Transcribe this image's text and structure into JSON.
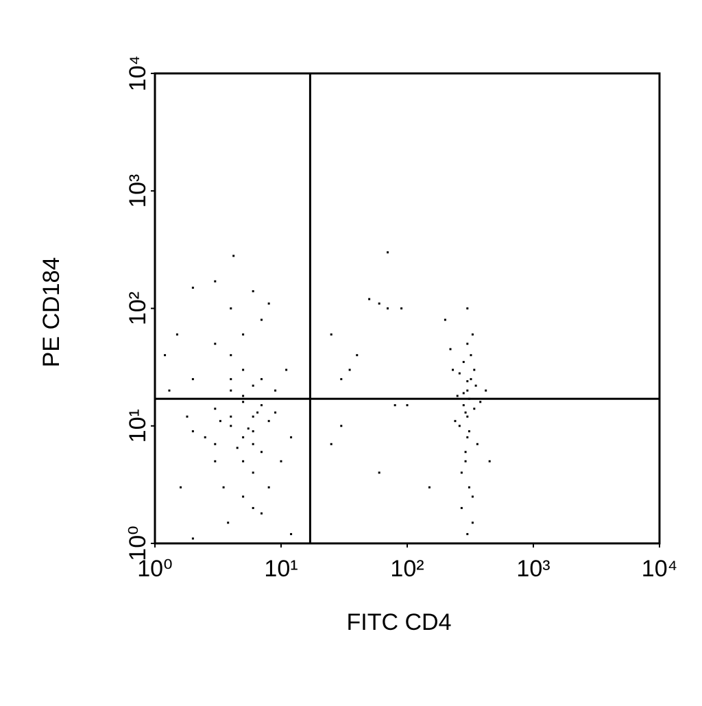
{
  "chart_data": {
    "type": "scatter",
    "x_label": "FITC CD4",
    "y_label": "PE CD184",
    "log_x": true,
    "log_y": true,
    "color": "#000000",
    "xlim": [
      1,
      10000
    ],
    "ylim": [
      1,
      10000
    ],
    "xticks": [
      {
        "value": 1,
        "label": "10⁰"
      },
      {
        "value": 10,
        "label": "10¹"
      },
      {
        "value": 100,
        "label": "10²"
      },
      {
        "value": 1000,
        "label": "10³"
      },
      {
        "value": 10000,
        "label": "10⁴"
      }
    ],
    "yticks": [
      {
        "value": 1,
        "label": "10⁰"
      },
      {
        "value": 10,
        "label": "10¹"
      },
      {
        "value": 100,
        "label": "10²"
      },
      {
        "value": 1000,
        "label": "10³"
      },
      {
        "value": 10000,
        "label": "10⁴"
      }
    ],
    "quadrant_x": 17,
    "quadrant_y": 17,
    "series": [
      {
        "x": [
          5,
          4,
          6,
          3,
          7,
          5,
          4,
          6,
          8,
          3,
          2,
          5,
          4,
          7,
          6,
          3,
          9,
          5,
          4,
          6,
          2,
          3,
          5,
          7,
          4,
          2,
          3,
          6,
          8,
          1.5,
          1.2,
          1.3,
          1.8,
          2.5,
          3.5,
          5,
          6,
          8,
          10,
          12,
          9,
          11,
          7,
          4,
          5,
          6,
          3.3,
          4.5,
          5.5,
          6.5,
          3.8,
          7,
          12,
          2,
          4.2,
          1.6,
          300,
          280,
          320,
          260,
          340,
          300,
          290,
          310,
          270,
          330,
          300,
          250,
          350,
          280,
          320,
          300,
          260,
          340,
          290,
          310,
          270,
          330,
          300,
          360,
          240,
          380,
          420,
          450,
          230,
          300,
          330,
          220,
          310,
          290,
          300,
          280,
          30,
          50,
          60,
          70,
          90,
          40,
          25,
          100,
          30,
          80,
          200,
          70,
          60,
          150,
          25,
          35
        ],
        "values": [
          8,
          10,
          12,
          7,
          15,
          5,
          20,
          9,
          11,
          14,
          9,
          30,
          40,
          6,
          4,
          5,
          13,
          16,
          12,
          7,
          25,
          50,
          60,
          80,
          100,
          150,
          170,
          140,
          110,
          60,
          40,
          20,
          12,
          8,
          3,
          2.5,
          2,
          3,
          5,
          8,
          20,
          30,
          25,
          25,
          18,
          22,
          11,
          6.5,
          9.5,
          13,
          1.5,
          1.8,
          1.2,
          1.1,
          280,
          3,
          20,
          15,
          25,
          10,
          30,
          8,
          5,
          3,
          2,
          1.5,
          12,
          18,
          22,
          35,
          40,
          50,
          28,
          14,
          6,
          9,
          4,
          2.5,
          1.2,
          7,
          11,
          16,
          20,
          5,
          30,
          100,
          60,
          45,
          17,
          13,
          24,
          19,
          10,
          120,
          110,
          100,
          100,
          40,
          60,
          15,
          25,
          15,
          80,
          300,
          4,
          3,
          7,
          30
        ]
      }
    ]
  }
}
